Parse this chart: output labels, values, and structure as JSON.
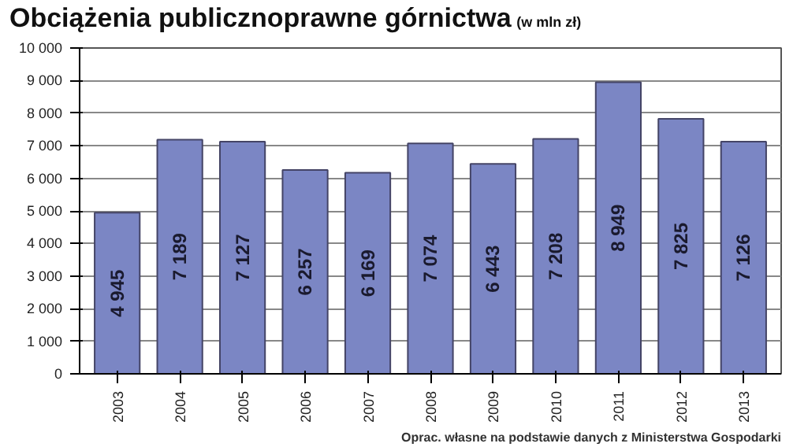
{
  "chart_data": {
    "type": "bar",
    "title": "Obciążenia publicznoprawne górnictwa",
    "subtitle": "(w mln zł)",
    "categories": [
      "2003",
      "2004",
      "2005",
      "2006",
      "2007",
      "2008",
      "2009",
      "2010",
      "2011",
      "2012",
      "2013"
    ],
    "values": [
      4945,
      7189,
      7127,
      6257,
      6169,
      7074,
      6443,
      7208,
      8949,
      7825,
      7126
    ],
    "value_labels": [
      "4 945",
      "7 189",
      "7 127",
      "6 257",
      "6 169",
      "7 074",
      "6 443",
      "7 208",
      "8 949",
      "7 825",
      "7 126"
    ],
    "color": "#7b86c4",
    "ylim": [
      0,
      10000
    ],
    "yticks": [
      {
        "value": 0,
        "label": "0"
      },
      {
        "value": 1000,
        "label": "1 000"
      },
      {
        "value": 2000,
        "label": "2 000"
      },
      {
        "value": 3000,
        "label": "3 000"
      },
      {
        "value": 4000,
        "label": "4 000"
      },
      {
        "value": 5000,
        "label": "5 000"
      },
      {
        "value": 6000,
        "label": "6 000"
      },
      {
        "value": 7000,
        "label": "7 000"
      },
      {
        "value": 8000,
        "label": "8 000"
      },
      {
        "value": 9000,
        "label": "9 000"
      },
      {
        "value": 10000,
        "label": "10 000"
      }
    ],
    "grid": "y",
    "annotations": [
      "Oprac. własne na podstawie danych z Ministerstwa Gospodarki"
    ]
  }
}
